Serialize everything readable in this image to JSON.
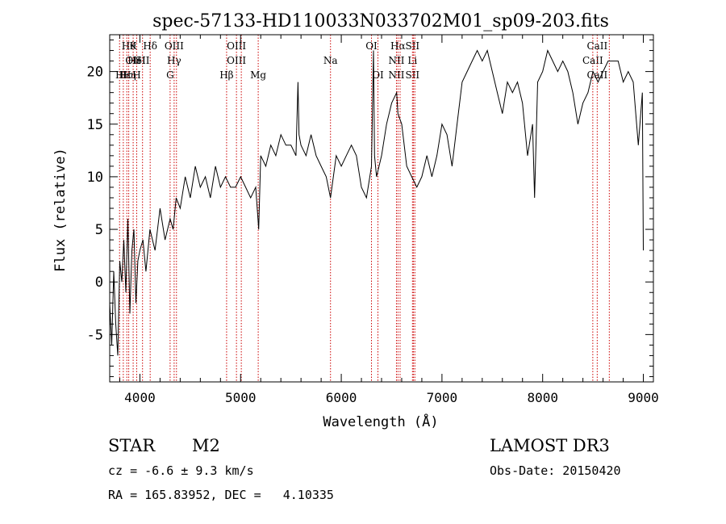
{
  "chart_data": {
    "type": "line",
    "title": "spec-57133-HD110033N033702M01_sp09-203.fits",
    "xlabel": "Wavelength (Å)",
    "ylabel": "Flux (relative)",
    "xlim": [
      3700,
      9100
    ],
    "ylim": [
      -9.5,
      23.5
    ],
    "xticks": [
      4000,
      5000,
      6000,
      7000,
      8000,
      9000
    ],
    "yticks": [
      -5,
      0,
      5,
      10,
      15,
      20
    ],
    "grid": false,
    "line_color": "#000000",
    "marker_color": "#cc0000",
    "series": [
      {
        "name": "flux",
        "x": [
          3700,
          3720,
          3740,
          3760,
          3780,
          3800,
          3820,
          3840,
          3860,
          3880,
          3900,
          3920,
          3940,
          3960,
          3980,
          4000,
          4030,
          4060,
          4100,
          4150,
          4200,
          4250,
          4300,
          4330,
          4360,
          4400,
          4450,
          4500,
          4550,
          4600,
          4650,
          4700,
          4750,
          4800,
          4850,
          4900,
          4950,
          5000,
          5050,
          5100,
          5150,
          5180,
          5200,
          5250,
          5300,
          5350,
          5400,
          5450,
          5500,
          5550,
          5570,
          5580,
          5600,
          5650,
          5700,
          5750,
          5800,
          5850,
          5893,
          5950,
          6000,
          6050,
          6100,
          6150,
          6200,
          6250,
          6300,
          6320,
          6330,
          6350,
          6400,
          6450,
          6500,
          6550,
          6563,
          6600,
          6650,
          6700,
          6750,
          6800,
          6850,
          6900,
          6950,
          7000,
          7050,
          7100,
          7150,
          7200,
          7250,
          7300,
          7350,
          7400,
          7450,
          7500,
          7550,
          7600,
          7650,
          7700,
          7750,
          7800,
          7850,
          7900,
          7920,
          7950,
          8000,
          8050,
          8100,
          8150,
          8200,
          8250,
          8300,
          8350,
          8400,
          8450,
          8500,
          8550,
          8600,
          8650,
          8700,
          8750,
          8800,
          8850,
          8900,
          8950,
          8990,
          9000
        ],
        "y": [
          -2,
          -6,
          1,
          -4,
          -7,
          2,
          0,
          4,
          -1,
          6,
          -3,
          3,
          5,
          -2,
          2,
          3,
          4,
          1,
          5,
          3,
          7,
          4,
          6,
          5,
          8,
          7,
          10,
          8,
          11,
          9,
          10,
          8,
          11,
          9,
          10,
          9,
          9,
          10,
          9,
          8,
          9,
          5,
          12,
          11,
          13,
          12,
          14,
          13,
          13,
          12,
          19,
          14,
          13,
          12,
          14,
          12,
          11,
          10,
          8,
          12,
          11,
          12,
          13,
          12,
          9,
          8,
          11,
          22,
          12,
          10,
          12,
          15,
          17,
          18,
          16,
          15,
          11,
          10,
          9,
          10,
          12,
          10,
          12,
          15,
          14,
          11,
          15,
          19,
          20,
          21,
          22,
          21,
          22,
          20,
          18,
          16,
          19,
          18,
          19,
          17,
          12,
          15,
          8,
          19,
          20,
          22,
          21,
          20,
          21,
          20,
          18,
          15,
          17,
          18,
          20,
          19,
          20,
          21,
          21,
          21,
          19,
          20,
          19,
          13,
          18,
          3
        ]
      }
    ],
    "line_markers": [
      {
        "x": 3798,
        "row1": "",
        "row2": "",
        "row3": "H"
      },
      {
        "x": 3835,
        "row1": "",
        "row2": "",
        "row3": "H"
      },
      {
        "x": 3870,
        "row1": "",
        "row2": "",
        "row3": "H"
      },
      {
        "x": 3889,
        "row1": "Hθ",
        "row2": "",
        "row3": "ε"
      },
      {
        "x": 3933,
        "row1": "K",
        "row2": "OII",
        "row3": "η"
      },
      {
        "x": 3968,
        "row1": "",
        "row2": "HeI",
        "row3": "H"
      },
      {
        "x": 4026,
        "row1": "",
        "row2": "SII",
        "row3": ""
      },
      {
        "x": 4102,
        "row1": "Hδ",
        "row2": "",
        "row3": ""
      },
      {
        "x": 4300,
        "row1": "",
        "row2": "",
        "row3": "G"
      },
      {
        "x": 4340,
        "row1": "OIII",
        "row2": "Hγ",
        "row3": ""
      },
      {
        "x": 4363,
        "row1": "",
        "row2": "",
        "row3": ""
      },
      {
        "x": 4861,
        "row1": "",
        "row2": "",
        "row3": "Hβ"
      },
      {
        "x": 4959,
        "row1": "OIII",
        "row2": "OIII",
        "row3": ""
      },
      {
        "x": 5007,
        "row1": "",
        "row2": "",
        "row3": ""
      },
      {
        "x": 5175,
        "row1": "",
        "row2": "",
        "row3": "Mg"
      },
      {
        "x": 5893,
        "row1": "",
        "row2": "Na",
        "row3": ""
      },
      {
        "x": 6300,
        "row1": "OI",
        "row2": "",
        "row3": ""
      },
      {
        "x": 6364,
        "row1": "",
        "row2": "",
        "row3": "OI"
      },
      {
        "x": 6548,
        "row1": "",
        "row2": "NII",
        "row3": "NII"
      },
      {
        "x": 6563,
        "row1": "Hα",
        "row2": "",
        "row3": ""
      },
      {
        "x": 6584,
        "row1": "",
        "row2": "",
        "row3": ""
      },
      {
        "x": 6707,
        "row1": "SII",
        "row2": "Li",
        "row3": "SII"
      },
      {
        "x": 6717,
        "row1": "",
        "row2": "",
        "row3": ""
      },
      {
        "x": 6731,
        "row1": "",
        "row2": "",
        "row3": ""
      },
      {
        "x": 8498,
        "row1": "",
        "row2": "CaII",
        "row3": ""
      },
      {
        "x": 8542,
        "row1": "CaII",
        "row2": "",
        "row3": "CaII"
      },
      {
        "x": 8662,
        "row1": "",
        "row2": "",
        "row3": ""
      }
    ]
  },
  "info": {
    "object_class": "STAR",
    "subclass": "M2",
    "survey": "LAMOST DR3",
    "redshift_text": "cz = -6.6 ± 9.3 km/s",
    "obs_date_text": "Obs-Date: 20150420",
    "coords_text": "RA = 165.83952, DEC =   4.10335"
  }
}
